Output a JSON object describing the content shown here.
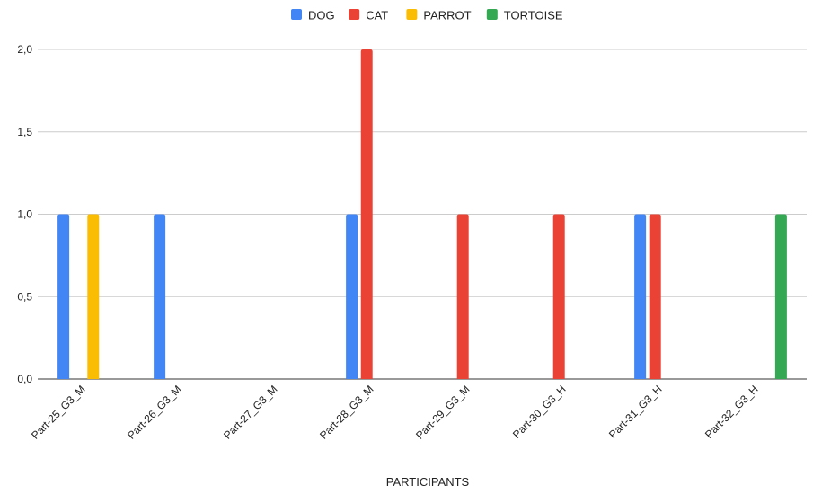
{
  "chart_data": {
    "type": "bar",
    "title": "",
    "xlabel": "PARTICIPANTS",
    "ylabel": "",
    "ylim": [
      0,
      2
    ],
    "yticks": [
      "0,0",
      "0,5",
      "1,0",
      "1,5",
      "2,0"
    ],
    "grid": true,
    "legend_position": "top",
    "categories": [
      "Part-25_G3_M",
      "Part-26_G3_M",
      "Part-27_G3_M",
      "Part-28_G3_M",
      "Part-29_G3_M",
      "Part-30_G3_H",
      "Part-31_G3_H",
      "Part-32_G3_H"
    ],
    "series": [
      {
        "name": "DOG",
        "color": "#4285f4",
        "values": [
          1,
          1,
          0,
          1,
          0,
          0,
          1,
          0
        ]
      },
      {
        "name": "CAT",
        "color": "#ea4335",
        "values": [
          0,
          0,
          0,
          2,
          1,
          1,
          1,
          0
        ]
      },
      {
        "name": "PARROT",
        "color": "#fbbc04",
        "values": [
          1,
          0,
          0,
          0,
          0,
          0,
          0,
          0
        ]
      },
      {
        "name": "TORTOISE",
        "color": "#34a853",
        "values": [
          0,
          0,
          0,
          0,
          0,
          0,
          0,
          1
        ]
      }
    ]
  }
}
